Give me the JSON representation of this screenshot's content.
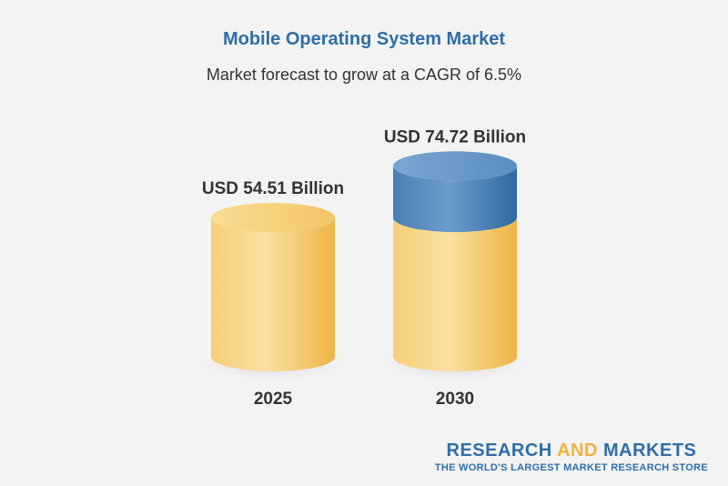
{
  "chart_data": {
    "type": "bar",
    "title": "Mobile Operating System Market",
    "subtitle": "Market forecast to grow at a CAGR of 6.5%",
    "categories": [
      "2025",
      "2030"
    ],
    "values": [
      54.51,
      74.72
    ],
    "value_labels": [
      "USD 54.51 Billion",
      "USD 74.72 Billion"
    ],
    "colors": {
      "base": "#f1c15a",
      "growth": "#4f87bd",
      "title": "#2f6ea8",
      "brand_accent": "#f1b13b"
    },
    "style": "cylinder",
    "growth_segment_on_last_bar": true
  },
  "brand": {
    "part1": "RESEARCH ",
    "part2": "AND",
    "part3": " MARKETS",
    "tagline": "THE WORLD'S LARGEST MARKET RESEARCH STORE"
  }
}
